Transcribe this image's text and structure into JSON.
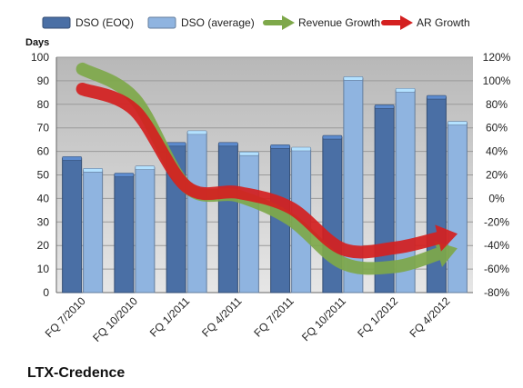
{
  "chart_data": {
    "type": "bar",
    "title": "LTX-Credence",
    "ylabel": "Days",
    "ylim": [
      0,
      100
    ],
    "y2lim": [
      -0.8,
      1.2
    ],
    "yticks": [
      "0",
      "10",
      "20",
      "30",
      "40",
      "50",
      "60",
      "70",
      "80",
      "90",
      "100"
    ],
    "y2ticks": [
      "-80%",
      "-60%",
      "-40%",
      "-20%",
      "0%",
      "20%",
      "40%",
      "60%",
      "80%",
      "100%",
      "120%"
    ],
    "categories": [
      "FQ 7/2010",
      "FQ 10/2010",
      "FQ 1/2011",
      "FQ 4/2011",
      "FQ 7/2011",
      "FQ 10/2011",
      "FQ 1/2012",
      "FQ 4/2012"
    ],
    "series": [
      {
        "name": "DSO (EOQ)",
        "kind": "bar",
        "color": "#4a6fa5",
        "values": [
          57,
          50,
          63,
          63,
          62,
          66,
          79,
          83
        ]
      },
      {
        "name": "DSO (average)",
        "kind": "bar",
        "color": "#8fb4e0",
        "values": [
          52,
          53,
          68,
          59,
          61,
          91,
          86,
          72
        ]
      },
      {
        "name": "Revenue Growth",
        "kind": "arrow",
        "color": "#7ea84a",
        "values": [
          1.1,
          0.85,
          0.1,
          0.02,
          -0.18,
          -0.55,
          -0.58,
          -0.45
        ]
      },
      {
        "name": "AR Growth",
        "kind": "arrow",
        "color": "#d42020",
        "values": [
          0.93,
          0.75,
          0.1,
          0.05,
          -0.08,
          -0.43,
          -0.42,
          -0.32
        ]
      }
    ],
    "grid": true,
    "legend": "top"
  }
}
